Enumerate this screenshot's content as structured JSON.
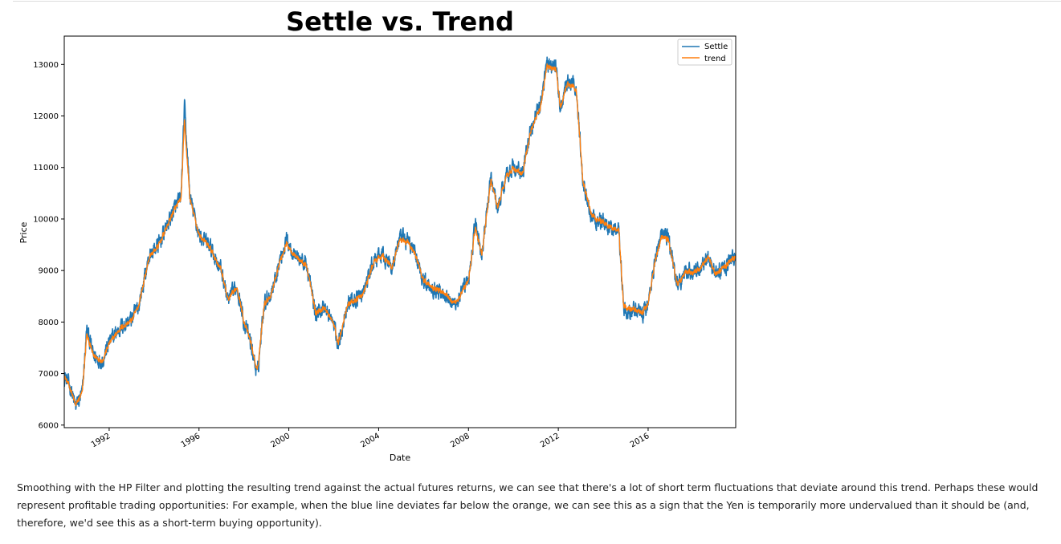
{
  "chart_data": {
    "type": "line",
    "title": "Settle vs. Trend",
    "xlabel": "Date",
    "ylabel": "Price",
    "xlim": [
      1990.0,
      2019.9
    ],
    "ylim": [
      5950,
      13550
    ],
    "x_ticks": [
      1992,
      1996,
      2000,
      2004,
      2008,
      2012,
      2016
    ],
    "x_tick_labels": [
      "1992",
      "1996",
      "2000",
      "2004",
      "2008",
      "2012",
      "2016"
    ],
    "y_ticks": [
      6000,
      7000,
      8000,
      9000,
      10000,
      11000,
      12000,
      13000
    ],
    "y_tick_labels": [
      "6000",
      "7000",
      "8000",
      "9000",
      "10000",
      "11000",
      "12000",
      "13000"
    ],
    "grid": false,
    "legend_position": "top-right",
    "series": [
      {
        "name": "Settle",
        "color": "#1f77b4",
        "noise": 170,
        "x": [
          1990.0,
          1990.3,
          1990.5,
          1990.8,
          1991.0,
          1991.3,
          1991.7,
          1992.0,
          1992.5,
          1993.0,
          1993.3,
          1993.8,
          1994.2,
          1994.6,
          1994.9,
          1995.2,
          1995.35,
          1995.6,
          1996.0,
          1996.5,
          1997.0,
          1997.3,
          1997.7,
          1998.0,
          1998.3,
          1998.6,
          1998.9,
          1999.2,
          1999.6,
          1999.9,
          2000.3,
          2000.8,
          2001.2,
          2001.6,
          2002.0,
          2002.2,
          2002.6,
          2003.0,
          2003.3,
          2003.8,
          2004.2,
          2004.6,
          2004.9,
          2005.3,
          2005.7,
          2006.0,
          2006.5,
          2007.0,
          2007.3,
          2007.6,
          2008.0,
          2008.3,
          2008.6,
          2009.0,
          2009.3,
          2009.7,
          2010.0,
          2010.4,
          2010.8,
          2011.2,
          2011.5,
          2011.9,
          2012.1,
          2012.4,
          2012.8,
          2013.1,
          2013.5,
          2013.9,
          2014.3,
          2014.7,
          2014.9,
          2015.3,
          2015.7,
          2016.0,
          2016.3,
          2016.6,
          2016.9,
          2017.3,
          2017.7,
          2018.0,
          2018.3,
          2018.7,
          2019.0,
          2019.4,
          2019.6,
          2019.9
        ],
        "values": [
          6950,
          6700,
          6350,
          6600,
          7850,
          7350,
          7250,
          7600,
          7900,
          8050,
          8300,
          9300,
          9500,
          9900,
          10200,
          10400,
          12200,
          10400,
          9700,
          9450,
          9000,
          8400,
          8700,
          8000,
          7600,
          6950,
          8400,
          8550,
          9200,
          9600,
          9300,
          9100,
          8150,
          8300,
          7950,
          7550,
          8350,
          8450,
          8550,
          9200,
          9300,
          9050,
          9600,
          9600,
          9250,
          8800,
          8650,
          8550,
          8350,
          8450,
          8800,
          9900,
          9300,
          10800,
          10200,
          10900,
          11000,
          10850,
          11800,
          12200,
          13050,
          12950,
          12100,
          12650,
          12550,
          10700,
          10050,
          9950,
          9850,
          9800,
          8300,
          8250,
          8150,
          8350,
          9200,
          9700,
          9650,
          8700,
          9000,
          8950,
          9050,
          9300,
          8900,
          9100,
          9150,
          9300
        ]
      },
      {
        "name": "trend",
        "color": "#ff7f0e",
        "noise": 55,
        "x": [
          1990.0,
          1990.3,
          1990.5,
          1990.8,
          1991.0,
          1991.3,
          1991.7,
          1992.0,
          1992.5,
          1993.0,
          1993.3,
          1993.8,
          1994.2,
          1994.6,
          1994.9,
          1995.2,
          1995.35,
          1995.6,
          1996.0,
          1996.5,
          1997.0,
          1997.3,
          1997.7,
          1998.0,
          1998.3,
          1998.6,
          1998.9,
          1999.2,
          1999.6,
          1999.9,
          2000.3,
          2000.8,
          2001.2,
          2001.6,
          2002.0,
          2002.2,
          2002.6,
          2003.0,
          2003.3,
          2003.8,
          2004.2,
          2004.6,
          2004.9,
          2005.3,
          2005.7,
          2006.0,
          2006.5,
          2007.0,
          2007.3,
          2007.6,
          2008.0,
          2008.3,
          2008.6,
          2009.0,
          2009.3,
          2009.7,
          2010.0,
          2010.4,
          2010.8,
          2011.2,
          2011.5,
          2011.9,
          2012.1,
          2012.4,
          2012.8,
          2013.1,
          2013.5,
          2013.9,
          2014.3,
          2014.7,
          2014.9,
          2015.3,
          2015.7,
          2016.0,
          2016.3,
          2016.6,
          2016.9,
          2017.3,
          2017.7,
          2018.0,
          2018.3,
          2018.7,
          2019.0,
          2019.4,
          2019.6,
          2019.9
        ],
        "values": [
          6950,
          6680,
          6380,
          6620,
          7750,
          7350,
          7250,
          7580,
          7880,
          8030,
          8300,
          9280,
          9480,
          9880,
          10180,
          10380,
          11900,
          10380,
          9700,
          9430,
          9000,
          8420,
          8680,
          8020,
          7620,
          7020,
          8350,
          8520,
          9180,
          9520,
          9280,
          9080,
          8170,
          8280,
          7960,
          7580,
          8330,
          8440,
          8530,
          9180,
          9280,
          9060,
          9560,
          9560,
          9240,
          8810,
          8660,
          8560,
          8370,
          8460,
          8800,
          9820,
          9320,
          10750,
          10230,
          10850,
          10980,
          10860,
          11760,
          12150,
          12980,
          12900,
          12150,
          12620,
          12520,
          10720,
          10070,
          9960,
          9850,
          9780,
          8330,
          8260,
          8170,
          8350,
          9170,
          9650,
          9600,
          8720,
          8990,
          8950,
          9040,
          9280,
          8910,
          9090,
          9150,
          9280
        ]
      }
    ]
  },
  "description": "Smoothing with the HP Filter and plotting the resulting trend against the actual futures returns, we can see that there's a lot of short term fluctuations that deviate around this trend. Perhaps these would represent profitable trading opportunities: For example, when the blue line deviates far below the orange, we can see this as a sign that the Yen is temporarily more undervalued than it should be (and, therefore, we'd see this as a short-term buying opportunity)."
}
